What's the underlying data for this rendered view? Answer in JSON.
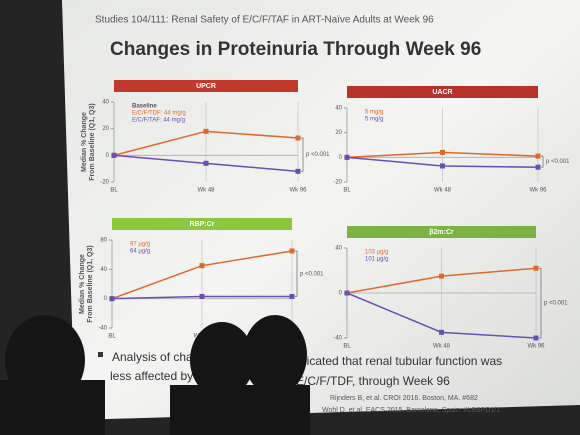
{
  "slide": {
    "header": "Studies 104/111: Renal Safety of E/C/F/TAF in ART-Naïve Adults at Week 96",
    "title": "Changes in Proteinuria Through Week 96",
    "bullet_fragments": [
      "Analysis of chang",
      "dicated that renal tubular function was",
      "less affected by E/",
      "E/C/F/TDF, through Week 96"
    ],
    "references": [
      "Rijnders B, et al. CROI 2016. Boston, MA. #682",
      "Wohl D, et al. EACS 2015. Barcelona, Spain. #LBBPD1/1"
    ]
  },
  "chart_data": [
    {
      "type": "line",
      "title": "UPCR",
      "header_color": "#c0392b",
      "ylabel": [
        "Median % Change",
        "From Baseline (Q1, Q3)"
      ],
      "categories": [
        "BL",
        "Wk 48",
        "Wk 96"
      ],
      "legend_title": "Baseline",
      "series": [
        {
          "name": "E/C/F/TDF: 44 mg/g",
          "color": "#e0692a",
          "values": [
            0,
            18,
            13
          ]
        },
        {
          "name": "E/C/F/TAF: 44 mg/g",
          "color": "#6a4fb3",
          "values": [
            0,
            -6,
            -12
          ]
        }
      ],
      "ylim": [
        -20,
        40
      ],
      "yticks": [
        40,
        20,
        0,
        -20
      ],
      "annotation": "p <0.001"
    },
    {
      "type": "line",
      "title": "UACR",
      "header_color": "#b8322a",
      "categories": [
        "BL",
        "Wk 48",
        "Wk 96"
      ],
      "series": [
        {
          "name": "5 mg/g",
          "color": "#e0692a",
          "values": [
            0,
            4,
            1
          ]
        },
        {
          "name": "5 mg/g",
          "color": "#6a4fb3",
          "values": [
            0,
            -7,
            -8
          ]
        }
      ],
      "ylim": [
        -20,
        40
      ],
      "yticks": [
        40,
        20,
        0,
        -20
      ],
      "annotation": "p <0.001"
    },
    {
      "type": "line",
      "title": "RBP:Cr",
      "header_color": "#8dc63f",
      "ylabel": [
        "Median % Change",
        "From Baseline (Q1, Q3)"
      ],
      "categories": [
        "BL",
        "Wk 48",
        "Wk 96"
      ],
      "series": [
        {
          "name": "97 µg/g",
          "color": "#e0692a",
          "values": [
            0,
            45,
            65
          ]
        },
        {
          "name": "64 µg/g",
          "color": "#6a4fb3",
          "values": [
            0,
            3,
            3
          ]
        }
      ],
      "ylim": [
        -40,
        80
      ],
      "yticks": [
        80,
        40,
        0,
        -40
      ],
      "annotation": "p <0.001"
    },
    {
      "type": "line",
      "title": "β2m:Cr",
      "header_color": "#7cb342",
      "categories": [
        "BL",
        "Wk 48",
        "Wk 96"
      ],
      "series": [
        {
          "name": "103 µg/g",
          "color": "#e0692a",
          "values": [
            0,
            15,
            22
          ]
        },
        {
          "name": "101 µg/g",
          "color": "#6a4fb3",
          "values": [
            0,
            -35,
            -40
          ]
        }
      ],
      "ylim": [
        -40,
        40
      ],
      "yticks": [
        40,
        0,
        -40
      ],
      "annotation": "p <0.001"
    }
  ]
}
